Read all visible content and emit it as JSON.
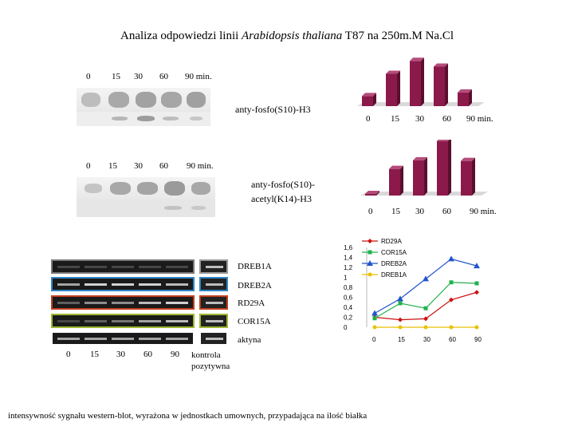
{
  "title": {
    "prefix": "Analiza odpowiedzi linii ",
    "species": "Arabidopsis thaliana",
    "suffix": " T87 na 250m.M Na.Cl"
  },
  "blot1": {
    "lanes": [
      "0",
      "15",
      "30",
      "60",
      "90 min."
    ],
    "label": "anty-fosfo(S10)-H3"
  },
  "blot2": {
    "lanes": [
      "0",
      "15",
      "30",
      "60",
      "90  min."
    ],
    "label_line1": "anty-fosfo(S10)-",
    "label_line2": "acetyl(K14)-H3"
  },
  "rtpcr": {
    "gene_labels": [
      "DREB1A",
      "DREB2A",
      "RD29A",
      "COR15A",
      "aktyna"
    ],
    "frame_colors": [
      "#7a7a7a",
      "#2e86c8",
      "#c04020",
      "#9cb832",
      "#ffffff"
    ],
    "lanes": [
      "0",
      "15",
      "30",
      "60",
      "90"
    ],
    "control_line1": "kontrola",
    "control_line2": "pozytywna"
  },
  "footnote": "intensywność sygnału western-blot, wyrażona w jednostkach umownych, przypadająca na ilość białka",
  "chart_data": [
    {
      "type": "bar",
      "title": "anty-fosfo(S10)-H3",
      "categories": [
        "0",
        "15",
        "30",
        "60",
        "90  min."
      ],
      "values": [
        0.14,
        0.45,
        0.63,
        0.55,
        0.19
      ],
      "ylim": [
        0,
        0.7
      ],
      "color": "#8b1a4a"
    },
    {
      "type": "bar",
      "title": "anty-fosfo(S10)-acetyl(K14)-H3",
      "categories": [
        "0",
        "15",
        "30",
        "60",
        "90  min."
      ],
      "values": [
        0.02,
        0.4,
        0.53,
        0.82,
        0.52
      ],
      "ylim": [
        0,
        0.9
      ],
      "color": "#8b1a4a"
    },
    {
      "type": "line",
      "x": [
        "0",
        "15",
        "30",
        "60",
        "90"
      ],
      "ylim": [
        0,
        1.6
      ],
      "yticks": [
        "0",
        "0,2",
        "0,4",
        "0,6",
        "0,8",
        "1",
        "1,2",
        "1,4",
        "1,6"
      ],
      "series": [
        {
          "name": "RD29A",
          "color": "#cc1111",
          "marker": "diamond",
          "values": [
            0.2,
            0.15,
            0.17,
            0.55,
            0.7
          ]
        },
        {
          "name": "COR15A",
          "color": "#22b14c",
          "marker": "square",
          "values": [
            0.18,
            0.48,
            0.38,
            0.9,
            0.88
          ]
        },
        {
          "name": "DREB2A",
          "color": "#2255cc",
          "marker": "triangle",
          "values": [
            0.28,
            0.57,
            0.97,
            1.37,
            1.23
          ]
        },
        {
          "name": "DREB1A",
          "color": "#e8c000",
          "marker": "circle",
          "values": [
            0,
            0,
            0,
            0,
            0
          ]
        }
      ]
    }
  ]
}
